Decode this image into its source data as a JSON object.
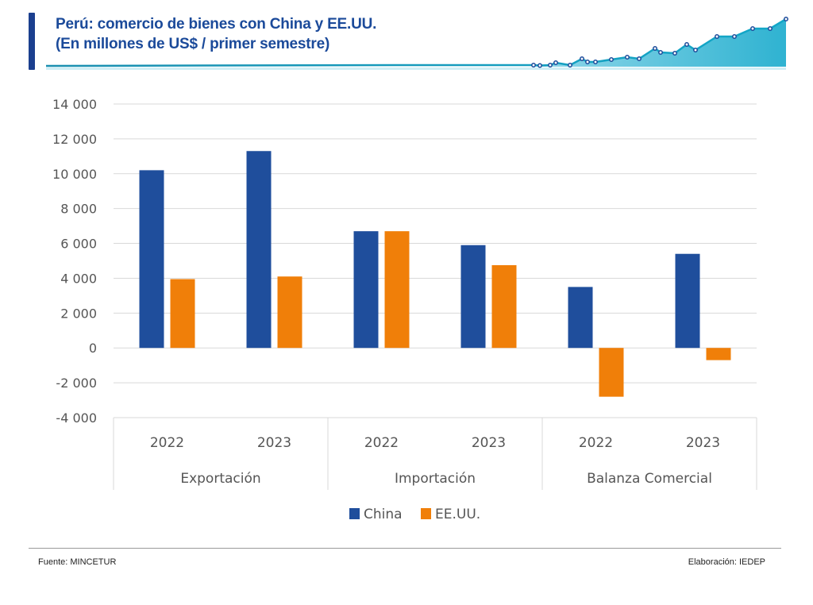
{
  "header": {
    "title_line1": "Perú: comercio de bienes con China y EE.UU.",
    "title_line2": "(En millones de US$ / primer semestre)"
  },
  "colors": {
    "china": "#1f4e9c",
    "eeuu": "#f07f09",
    "title": "#1b4a9a",
    "accent": "#12a7c8"
  },
  "chart_data": {
    "type": "bar",
    "title": "Perú: comercio de bienes con China y EE.UU. (En millones de US$ / primer semestre)",
    "xlabel": "",
    "ylabel": "",
    "ylim": [
      -4000,
      14000
    ],
    "yticks": [
      14000,
      12000,
      10000,
      8000,
      6000,
      4000,
      2000,
      0,
      -2000,
      -4000
    ],
    "ytick_labels": [
      "14 000",
      "12 000",
      "10 000",
      "8 000",
      "6 000",
      "4 000",
      "2 000",
      "0",
      "-2 000",
      "-4 000"
    ],
    "grid": true,
    "legend_position": "bottom-center",
    "groups": [
      {
        "label": "Exportación",
        "categories": [
          "2022",
          "2023"
        ]
      },
      {
        "label": "Importación",
        "categories": [
          "2022",
          "2023"
        ]
      },
      {
        "label": "Balanza Comercial",
        "categories": [
          "2022",
          "2023"
        ]
      }
    ],
    "categories": [
      "Exportación 2022",
      "Exportación 2023",
      "Importación 2022",
      "Importación 2023",
      "Balanza Comercial 2022",
      "Balanza Comercial 2023"
    ],
    "series": [
      {
        "name": "China",
        "color": "#1f4e9c",
        "values": [
          10200,
          11300,
          6700,
          5900,
          3500,
          5400
        ]
      },
      {
        "name": "EE.UU.",
        "color": "#f07f09",
        "values": [
          3950,
          4100,
          6700,
          4750,
          -2800,
          -700
        ]
      }
    ]
  },
  "footer": {
    "source": "Fuente: MINCETUR",
    "credit": "Elaboración: IEDEP"
  }
}
